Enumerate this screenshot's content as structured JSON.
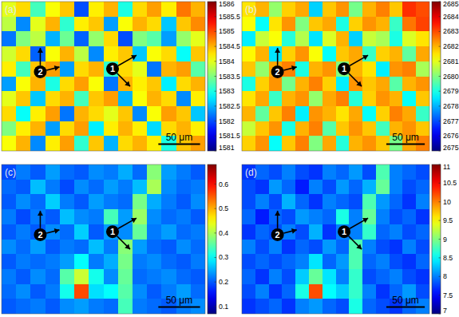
{
  "chart_data": [
    {
      "type": "heatmap",
      "title": "(a)",
      "annotations": [
        "1",
        "2"
      ],
      "scale_bar": "50 μm",
      "clim": [
        1581,
        1586
      ],
      "cticks": [
        1581,
        1581.5,
        1582,
        1582.5,
        1583,
        1583.5,
        1584,
        1584.5,
        1585,
        1585.5,
        1586
      ],
      "cells": [
        [
          1584,
          1584.3,
          1583.2,
          1584.1,
          1584.4,
          1582.0,
          1584.2,
          1584.5,
          1583.0,
          1584.3,
          1584.6,
          1584.2,
          1584.8,
          1584.5
        ],
        [
          1583.8,
          1582.3,
          1584.0,
          1584.5,
          1583.1,
          1584.2,
          1584.4,
          1582.4,
          1584.1,
          1584.5,
          1584.3,
          1582.6,
          1584.4,
          1584.7
        ],
        [
          1582.2,
          1583.5,
          1583.8,
          1582.5,
          1583.4,
          1582.1,
          1583.6,
          1584.3,
          1582.0,
          1583.5,
          1583.3,
          1582.4,
          1583.6,
          1584.0
        ],
        [
          1583.9,
          1584.3,
          1582.1,
          1584.1,
          1584.5,
          1583.8,
          1582.3,
          1584.2,
          1584.4,
          1582.6,
          1584.1,
          1584.3,
          1582.9,
          1584.4
        ],
        [
          1584.2,
          1583.2,
          1584.4,
          1584.6,
          1582.4,
          1584.3,
          1584.5,
          1583.1,
          1584.3,
          1584.0,
          1582.2,
          1584.5,
          1584.6,
          1583.3
        ],
        [
          1582.4,
          1584.1,
          1584.5,
          1583.0,
          1584.3,
          1584.6,
          1584.1,
          1582.2,
          1584.5,
          1584.2,
          1584.4,
          1582.8,
          1584.3,
          1584.5
        ],
        [
          1584.0,
          1584.4,
          1582.6,
          1584.3,
          1584.5,
          1583.2,
          1584.4,
          1584.6,
          1582.5,
          1584.1,
          1584.5,
          1584.3,
          1582.3,
          1584.2
        ],
        [
          1584.3,
          1582.9,
          1584.2,
          1584.6,
          1582.2,
          1584.5,
          1584.3,
          1584.0,
          1584.4,
          1582.3,
          1584.1,
          1584.6,
          1584.4,
          1582.6
        ],
        [
          1583.5,
          1584.2,
          1584.5,
          1582.4,
          1584.3,
          1584.6,
          1582.8,
          1584.2,
          1584.5,
          1584.2,
          1582.7,
          1584.3,
          1584.5,
          1584.2
        ],
        [
          1584.1,
          1584.5,
          1582.3,
          1584.2,
          1584.6,
          1583.1,
          1584.4,
          1582.5,
          1584.3,
          1584.5,
          1584.2,
          1583.0,
          1584.4,
          1584.6
        ]
      ]
    },
    {
      "type": "heatmap",
      "title": "(b)",
      "annotations": [
        "1",
        "2"
      ],
      "scale_bar": "50 μm",
      "clim": [
        2675,
        2685
      ],
      "cticks": [
        2675,
        2676,
        2677,
        2678,
        2679,
        2680,
        2681,
        2682,
        2683,
        2684,
        2685
      ],
      "cells": [
        [
          2681.5,
          2682.0,
          2680.2,
          2681.7,
          2682.1,
          2678.3,
          2681.8,
          2682.3,
          2679.9,
          2682.0,
          2682.5,
          2681.8,
          2683.3,
          2683.0
        ],
        [
          2681.2,
          2678.8,
          2681.5,
          2682.3,
          2680.0,
          2681.8,
          2682.1,
          2679.0,
          2681.7,
          2682.3,
          2682.0,
          2679.3,
          2682.6,
          2683.1
        ],
        [
          2678.6,
          2680.7,
          2681.2,
          2679.1,
          2680.5,
          2678.5,
          2680.9,
          2682.0,
          2678.3,
          2680.7,
          2680.4,
          2679.0,
          2680.9,
          2681.5
        ],
        [
          2681.3,
          2682.0,
          2678.5,
          2681.7,
          2682.3,
          2681.2,
          2678.8,
          2681.8,
          2682.1,
          2679.3,
          2681.7,
          2682.0,
          2679.7,
          2682.1
        ],
        [
          2681.8,
          2680.2,
          2682.1,
          2682.5,
          2679.0,
          2682.0,
          2682.3,
          2680.0,
          2682.0,
          2681.5,
          2678.6,
          2682.3,
          2682.5,
          2680.4
        ],
        [
          2679.0,
          2681.7,
          2682.3,
          2679.9,
          2682.0,
          2682.5,
          2681.7,
          2678.6,
          2682.3,
          2681.8,
          2682.1,
          2679.6,
          2682.0,
          2682.3
        ],
        [
          2681.5,
          2682.1,
          2679.3,
          2682.0,
          2682.3,
          2680.2,
          2682.1,
          2682.5,
          2679.1,
          2681.7,
          2682.3,
          2682.0,
          2678.8,
          2681.8
        ],
        [
          2682.0,
          2679.7,
          2681.8,
          2682.5,
          2678.6,
          2682.3,
          2682.0,
          2681.5,
          2682.1,
          2678.8,
          2681.7,
          2682.5,
          2682.1,
          2679.3
        ],
        [
          2680.7,
          2681.8,
          2682.3,
          2679.0,
          2682.0,
          2682.5,
          2679.6,
          2681.8,
          2682.3,
          2681.8,
          2679.4,
          2682.0,
          2682.3,
          2681.8
        ],
        [
          2681.7,
          2682.3,
          2678.8,
          2681.8,
          2682.5,
          2680.0,
          2682.1,
          2679.1,
          2682.0,
          2682.3,
          2681.8,
          2679.9,
          2682.1,
          2682.5
        ]
      ]
    },
    {
      "type": "heatmap",
      "title": "(c)",
      "annotations": [
        "1",
        "2"
      ],
      "scale_bar": "50 μm",
      "clim": [
        0.07,
        0.68
      ],
      "cticks": [
        0.1,
        0.2,
        0.3,
        0.4,
        0.5,
        0.6
      ],
      "cells": [
        [
          0.19,
          0.22,
          0.2,
          0.24,
          0.21,
          0.2,
          0.23,
          0.22,
          0.25,
          0.21,
          0.38,
          0.24,
          0.22,
          0.2
        ],
        [
          0.21,
          0.2,
          0.26,
          0.22,
          0.19,
          0.23,
          0.21,
          0.24,
          0.22,
          0.26,
          0.4,
          0.23,
          0.21,
          0.22
        ],
        [
          0.2,
          0.23,
          0.21,
          0.27,
          0.22,
          0.2,
          0.24,
          0.22,
          0.21,
          0.37,
          0.25,
          0.22,
          0.2,
          0.23
        ],
        [
          0.22,
          0.19,
          0.22,
          0.2,
          0.26,
          0.23,
          0.22,
          0.34,
          0.24,
          0.39,
          0.23,
          0.21,
          0.22,
          0.2
        ],
        [
          0.2,
          0.22,
          0.2,
          0.23,
          0.21,
          0.27,
          0.2,
          0.24,
          0.23,
          0.36,
          0.22,
          0.24,
          0.21,
          0.22
        ],
        [
          0.23,
          0.21,
          0.24,
          0.2,
          0.22,
          0.21,
          0.26,
          0.22,
          0.38,
          0.24,
          0.21,
          0.2,
          0.23,
          0.21
        ],
        [
          0.2,
          0.22,
          0.21,
          0.22,
          0.24,
          0.3,
          0.22,
          0.25,
          0.37,
          0.22,
          0.23,
          0.21,
          0.2,
          0.22
        ],
        [
          0.22,
          0.2,
          0.23,
          0.21,
          0.35,
          0.42,
          0.31,
          0.23,
          0.36,
          0.21,
          0.22,
          0.23,
          0.21,
          0.2
        ],
        [
          0.21,
          0.23,
          0.2,
          0.22,
          0.31,
          0.56,
          0.28,
          0.3,
          0.35,
          0.23,
          0.2,
          0.22,
          0.24,
          0.21
        ],
        [
          0.2,
          0.21,
          0.22,
          0.2,
          0.23,
          0.24,
          0.22,
          0.21,
          0.34,
          0.22,
          0.21,
          0.2,
          0.22,
          0.23
        ]
      ]
    },
    {
      "type": "heatmap",
      "title": "(d)",
      "annotations": [
        "1",
        "2"
      ],
      "scale_bar": "50 μm",
      "clim": [
        7,
        11
      ],
      "cticks": [
        7,
        7.5,
        8,
        8.5,
        9,
        9.5,
        10,
        10.5,
        11
      ],
      "cells": [
        [
          7.7,
          7.9,
          7.8,
          8.0,
          7.8,
          7.7,
          8.0,
          7.9,
          8.1,
          7.8,
          8.8,
          8.0,
          7.9,
          7.8
        ],
        [
          7.8,
          7.7,
          8.1,
          7.9,
          7.6,
          8.0,
          7.8,
          8.1,
          7.9,
          8.2,
          8.9,
          8.0,
          7.8,
          7.9
        ],
        [
          7.8,
          8.0,
          7.8,
          8.2,
          7.9,
          7.7,
          8.0,
          7.9,
          7.8,
          8.8,
          8.1,
          7.9,
          7.7,
          8.0
        ],
        [
          7.9,
          7.6,
          7.9,
          7.8,
          8.1,
          8.0,
          7.9,
          8.6,
          8.0,
          8.9,
          8.0,
          7.8,
          7.9,
          7.7
        ],
        [
          7.7,
          7.9,
          7.8,
          8.0,
          7.8,
          8.2,
          7.7,
          8.0,
          8.0,
          8.7,
          7.9,
          8.0,
          7.8,
          7.9
        ],
        [
          8.0,
          7.8,
          8.0,
          7.7,
          7.9,
          7.8,
          8.1,
          7.9,
          8.8,
          8.0,
          7.8,
          7.7,
          8.0,
          7.8
        ],
        [
          7.8,
          7.9,
          7.8,
          7.9,
          8.0,
          8.4,
          7.9,
          8.1,
          8.8,
          7.9,
          8.0,
          7.8,
          7.7,
          7.9
        ],
        [
          7.9,
          7.7,
          8.0,
          7.8,
          8.3,
          8.9,
          8.4,
          8.0,
          8.7,
          7.8,
          7.9,
          8.0,
          7.8,
          7.7
        ],
        [
          7.8,
          8.0,
          7.7,
          7.9,
          8.6,
          10.2,
          8.5,
          8.3,
          8.7,
          8.0,
          7.7,
          7.9,
          8.1,
          7.8
        ],
        [
          7.7,
          7.8,
          7.9,
          7.7,
          8.0,
          8.1,
          7.9,
          7.8,
          8.6,
          7.9,
          7.8,
          7.7,
          7.9,
          8.0
        ]
      ]
    }
  ]
}
